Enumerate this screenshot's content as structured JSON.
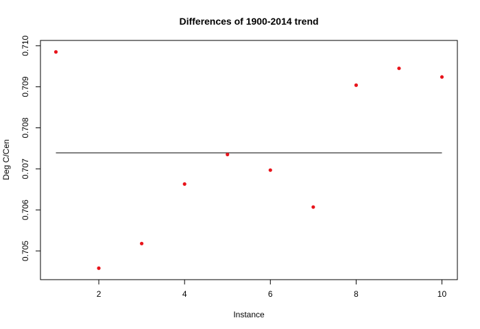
{
  "chart_data": {
    "type": "scatter",
    "title": "Differences of 1900-2014 trend",
    "xlabel": "Instance",
    "ylabel": "Deg C/Cen",
    "x": [
      1,
      2,
      3,
      4,
      5,
      6,
      7,
      8,
      9,
      10
    ],
    "y": [
      0.70985,
      0.70458,
      0.70518,
      0.70663,
      0.70735,
      0.70697,
      0.70607,
      0.70904,
      0.70945,
      0.70924
    ],
    "xlim": [
      0.64,
      10.36
    ],
    "ylim": [
      0.7043,
      0.71013
    ],
    "xticks": [
      2,
      4,
      6,
      8,
      10
    ],
    "yticks": [
      0.705,
      0.706,
      0.707,
      0.708,
      0.709,
      0.71
    ],
    "xtick_labels": [
      "2",
      "4",
      "6",
      "8",
      "10"
    ],
    "ytick_labels": [
      "0.705",
      "0.706",
      "0.707",
      "0.708",
      "0.709",
      "0.710"
    ],
    "reference_line": {
      "y": 0.70739,
      "x_from": 1,
      "x_to": 10,
      "color": "#000000"
    },
    "point_color": "#e8141b",
    "grid": false,
    "legend": "none"
  }
}
